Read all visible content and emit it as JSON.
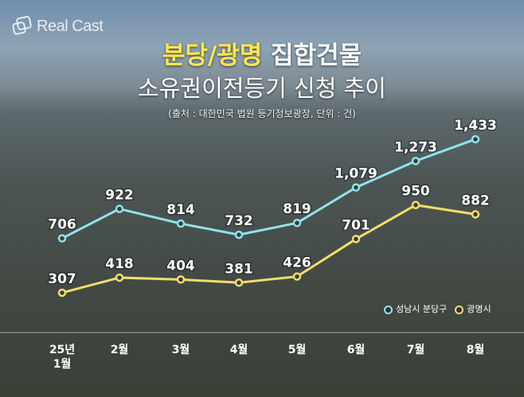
{
  "logo": "Real Cast",
  "title": {
    "highlight": "분당/광명",
    "rest": "집합건물",
    "line2": "소유권이전등기 신청 추이"
  },
  "source": "(출처 : 대한민국 법원 등기정보광장, 단위 : 건)",
  "chart_data": {
    "type": "line",
    "categories": [
      "25년\n1월",
      "2월",
      "3월",
      "4월",
      "5월",
      "6월",
      "7월",
      "8월"
    ],
    "series": [
      {
        "name": "성남시 분당구",
        "color": "#8fe3ee",
        "values": [
          706,
          922,
          814,
          732,
          819,
          1079,
          1273,
          1433
        ]
      },
      {
        "name": "광명시",
        "color": "#f3dd6a",
        "values": [
          307,
          418,
          404,
          381,
          426,
          701,
          950,
          882
        ]
      }
    ],
    "ylim": [
      0,
      2450
    ],
    "grid": false,
    "legend": "bottom-right"
  }
}
